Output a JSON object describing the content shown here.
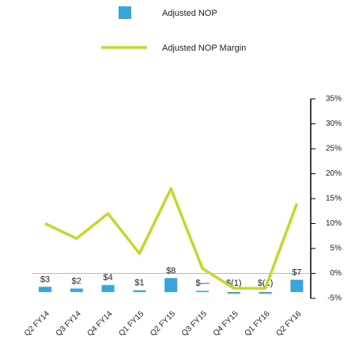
{
  "chart_data": {
    "type": "bar_line",
    "categories": [
      "Q2 FY14",
      "Q3 FY14",
      "Q4 FY14",
      "Q1 FY15",
      "Q2 FY15",
      "Q3 FY15",
      "Q4 FY15",
      "Q1 FY16",
      "Q2 FY16"
    ],
    "series": [
      {
        "name": "Adjusted NOP",
        "type": "bar",
        "color": "#3aa5dc",
        "values": [
          3,
          2,
          4,
          1,
          8,
          0,
          -1,
          -1,
          7
        ],
        "value_labels": [
          "$3",
          "$2",
          "$4",
          "$1",
          "$8",
          "$—",
          "$(1)",
          "$(1)",
          "$7"
        ]
      },
      {
        "name": "Adjusted NOP Margin",
        "type": "line",
        "axis": "y2",
        "color": "#c5d82a",
        "values": [
          10,
          7,
          12,
          4,
          17,
          1,
          -3,
          -3,
          14
        ]
      }
    ],
    "y2lim": [
      -5,
      35
    ],
    "y2ticks": [
      {
        "value": 35,
        "label": "35%"
      },
      {
        "value": 30,
        "label": "30%"
      },
      {
        "value": 25,
        "label": "25%"
      },
      {
        "value": 20,
        "label": "20%"
      },
      {
        "value": 15,
        "label": "15%"
      },
      {
        "value": 10,
        "label": "10%"
      },
      {
        "value": 5,
        "label": "5%"
      },
      {
        "value": 0,
        "label": "0%"
      },
      {
        "value": -5,
        "label": "-5%"
      }
    ]
  }
}
